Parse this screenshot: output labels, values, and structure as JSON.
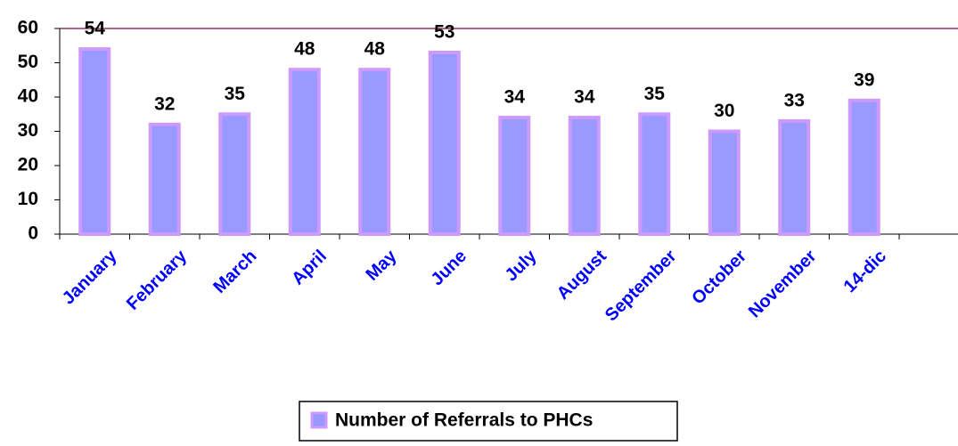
{
  "chart_data": {
    "type": "bar",
    "categories": [
      "January",
      "February",
      "March",
      "April",
      "May",
      "June",
      "July",
      "August",
      "September",
      "October",
      "November",
      "14-dic",
      null
    ],
    "series": [
      {
        "name": "Number of Referrals to PHCs",
        "color": "#9999ff",
        "edge_color": "#cc99ff",
        "values": [
          54,
          32,
          35,
          48,
          48,
          53,
          34,
          34,
          35,
          30,
          33,
          39,
          null
        ]
      }
    ],
    "ylim": [
      0,
      60
    ],
    "yticks": [
      0,
      10,
      20,
      30,
      40,
      50,
      60
    ],
    "grid": false,
    "top_line_color": "#993366",
    "legend": "bottom",
    "category_label_color": "#0000ff"
  }
}
